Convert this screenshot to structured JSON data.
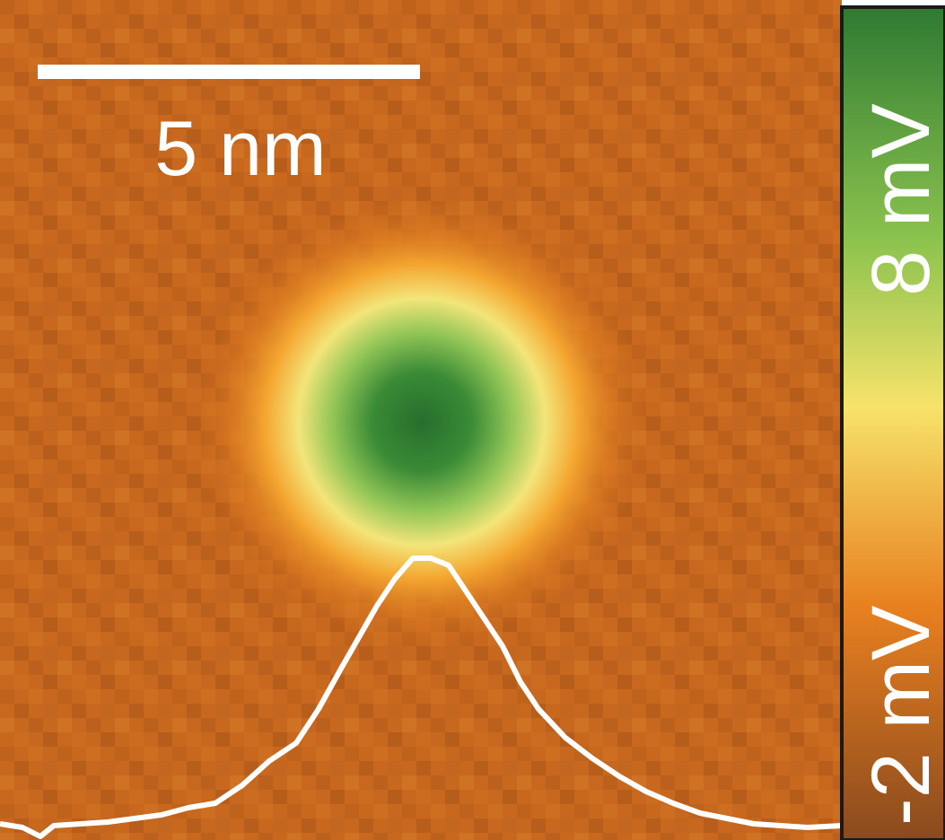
{
  "scalebar": {
    "label": "5 nm"
  },
  "colorbar": {
    "min_label": "-2 mV",
    "max_label": "8 mV",
    "colors": [
      "#8a4a1e",
      "#e8801f",
      "#f7e36a",
      "#8cc34e",
      "#2e7a32"
    ]
  },
  "map": {
    "background_color": "#c8691e",
    "center_color": "#2a7a32",
    "line_color": "#ffffff"
  }
}
